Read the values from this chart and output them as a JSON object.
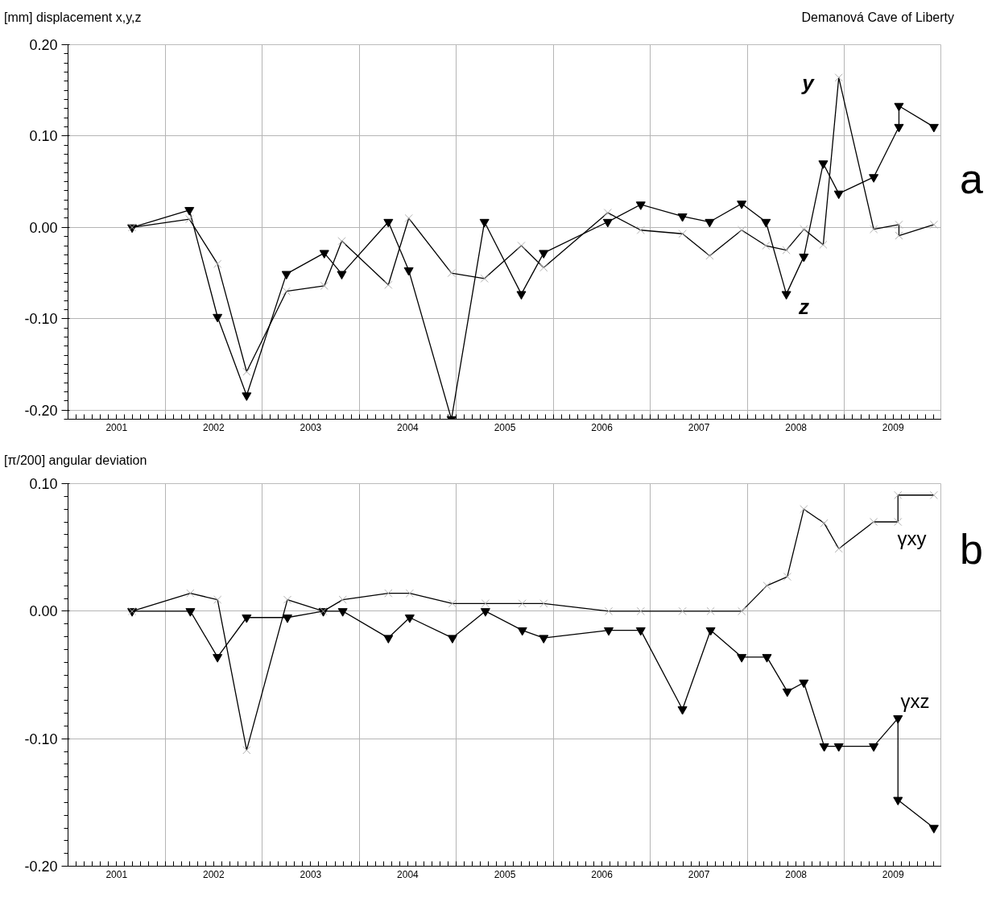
{
  "chart_data": [
    {
      "type": "line",
      "ylabel": "[mm] displacement x,y,z",
      "subtitle": "Demanová Cave of Liberty",
      "annotations": [
        "a",
        "y",
        "z"
      ],
      "xlim": [
        2001,
        2010
      ],
      "ylim": [
        -0.21,
        0.2
      ],
      "xticks": [
        {
          "value": 2001,
          "label": null
        },
        {
          "value": 2001.5,
          "label": "2001"
        },
        {
          "value": 2002,
          "label": null
        },
        {
          "value": 2002.5,
          "label": "2002"
        },
        {
          "value": 2003,
          "label": null
        },
        {
          "value": 2003.5,
          "label": "2003"
        },
        {
          "value": 2004,
          "label": null
        },
        {
          "value": 2004.5,
          "label": "2004"
        },
        {
          "value": 2005,
          "label": null
        },
        {
          "value": 2005.5,
          "label": "2005"
        },
        {
          "value": 2006,
          "label": null
        },
        {
          "value": 2006.5,
          "label": "2006"
        },
        {
          "value": 2007,
          "label": null
        },
        {
          "value": 2007.5,
          "label": "2007"
        },
        {
          "value": 2008,
          "label": null
        },
        {
          "value": 2008.5,
          "label": "2008"
        },
        {
          "value": 2009,
          "label": null
        },
        {
          "value": 2009.5,
          "label": "2009"
        },
        {
          "value": 2010,
          "label": null
        }
      ],
      "yticks": [
        {
          "value": -0.2,
          "label": "-0.20"
        },
        {
          "value": -0.1,
          "label": "-0.10"
        },
        {
          "value": 0,
          "label": "0.00"
        },
        {
          "value": 0.1,
          "label": "0.10"
        },
        {
          "value": 0.2,
          "label": "0.20"
        }
      ],
      "grid": true,
      "series": [
        {
          "color": "#000000",
          "marker": "triangle",
          "x": [
            2001.66,
            2002.25,
            2002.54,
            2002.84,
            2003.25,
            2003.64,
            2003.82,
            2004.3,
            2004.51,
            2004.95,
            2005.29,
            2005.67,
            2005.9,
            2006.56,
            2006.9,
            2007.33,
            2007.61,
            2007.94,
            2008.19,
            2008.4,
            2008.58,
            2008.78,
            2008.94,
            2009.3,
            2009.56,
            2009.56,
            2009.92
          ],
          "values": [
            0.0,
            0.019,
            -0.098,
            -0.184,
            -0.051,
            -0.028,
            -0.051,
            0.006,
            -0.047,
            -0.21,
            0.006,
            -0.073,
            -0.028,
            0.006,
            0.025,
            0.012,
            0.006,
            0.026,
            0.006,
            -0.073,
            -0.032,
            0.07,
            0.037,
            0.055,
            0.11,
            0.133,
            0.11
          ]
        },
        {
          "color": "#000000",
          "marker": "cross",
          "x": [
            2001.66,
            2002.25,
            2002.54,
            2002.84,
            2003.25,
            2003.64,
            2003.82,
            2004.3,
            2004.51,
            2004.95,
            2005.29,
            2005.67,
            2005.9,
            2006.56,
            2006.9,
            2007.33,
            2007.61,
            2007.94,
            2008.19,
            2008.4,
            2008.58,
            2008.78,
            2008.94,
            2009.3,
            2009.56,
            2009.56,
            2009.92
          ],
          "values": [
            0.0,
            0.009,
            -0.04,
            -0.158,
            -0.07,
            -0.064,
            -0.015,
            -0.063,
            0.01,
            -0.05,
            -0.056,
            -0.02,
            -0.044,
            0.016,
            -0.003,
            -0.007,
            -0.031,
            -0.003,
            -0.02,
            -0.025,
            -0.002,
            -0.019,
            0.164,
            -0.002,
            0.003,
            -0.009,
            0.003
          ]
        }
      ]
    },
    {
      "type": "line",
      "ylabel": "[π/200] angular deviation",
      "annotations": [
        "b",
        "γxy",
        "γxz"
      ],
      "xlim": [
        2001,
        2010
      ],
      "ylim": [
        -0.2,
        0.1
      ],
      "xticks": [
        {
          "value": 2001,
          "label": null
        },
        {
          "value": 2001.5,
          "label": "2001"
        },
        {
          "value": 2002,
          "label": null
        },
        {
          "value": 2002.5,
          "label": "2002"
        },
        {
          "value": 2003,
          "label": null
        },
        {
          "value": 2003.5,
          "label": "2003"
        },
        {
          "value": 2004,
          "label": null
        },
        {
          "value": 2004.5,
          "label": "2004"
        },
        {
          "value": 2005,
          "label": null
        },
        {
          "value": 2005.5,
          "label": "2005"
        },
        {
          "value": 2006,
          "label": null
        },
        {
          "value": 2006.5,
          "label": "2006"
        },
        {
          "value": 2007,
          "label": null
        },
        {
          "value": 2007.5,
          "label": "2007"
        },
        {
          "value": 2008,
          "label": null
        },
        {
          "value": 2008.5,
          "label": "2008"
        },
        {
          "value": 2009,
          "label": null
        },
        {
          "value": 2009.5,
          "label": "2009"
        },
        {
          "value": 2010,
          "label": null
        }
      ],
      "yticks": [
        {
          "value": -0.2,
          "label": "-0.20"
        },
        {
          "value": -0.1,
          "label": "-0.10"
        },
        {
          "value": 0,
          "label": "0.00"
        },
        {
          "value": 0.1,
          "label": "0.10"
        }
      ],
      "grid": true,
      "series": [
        {
          "color": "#000000",
          "marker": "triangle",
          "x": [
            2001.66,
            2002.26,
            2002.54,
            2002.84,
            2003.26,
            2003.63,
            2003.83,
            2004.3,
            2004.52,
            2004.96,
            2005.3,
            2005.68,
            2005.9,
            2006.57,
            2006.9,
            2007.33,
            2007.62,
            2007.94,
            2008.2,
            2008.41,
            2008.58,
            2008.79,
            2008.94,
            2009.3,
            2009.55,
            2009.55,
            2009.92
          ],
          "values": [
            0.0,
            0.0,
            -0.036,
            -0.005,
            -0.005,
            0.0,
            0.0,
            -0.021,
            -0.005,
            -0.021,
            0.0,
            -0.015,
            -0.021,
            -0.015,
            -0.015,
            -0.077,
            -0.015,
            -0.036,
            -0.036,
            -0.063,
            -0.056,
            -0.106,
            -0.106,
            -0.106,
            -0.084,
            -0.148,
            -0.17
          ]
        },
        {
          "color": "#000000",
          "marker": "cross",
          "x": [
            2001.66,
            2002.26,
            2002.54,
            2002.84,
            2003.26,
            2003.63,
            2003.83,
            2004.3,
            2004.52,
            2004.96,
            2005.3,
            2005.68,
            2005.9,
            2006.57,
            2006.9,
            2007.33,
            2007.62,
            2007.94,
            2008.2,
            2008.41,
            2008.58,
            2008.79,
            2008.94,
            2009.3,
            2009.55,
            2009.55,
            2009.92
          ],
          "values": [
            0.0,
            0.014,
            0.009,
            -0.109,
            0.009,
            0.0,
            0.009,
            0.014,
            0.014,
            0.006,
            0.006,
            0.006,
            0.006,
            0.0,
            0.0,
            0.0,
            0.0,
            0.0,
            0.02,
            0.027,
            0.08,
            0.069,
            0.049,
            0.07,
            0.07,
            0.091,
            0.091
          ]
        }
      ]
    }
  ]
}
